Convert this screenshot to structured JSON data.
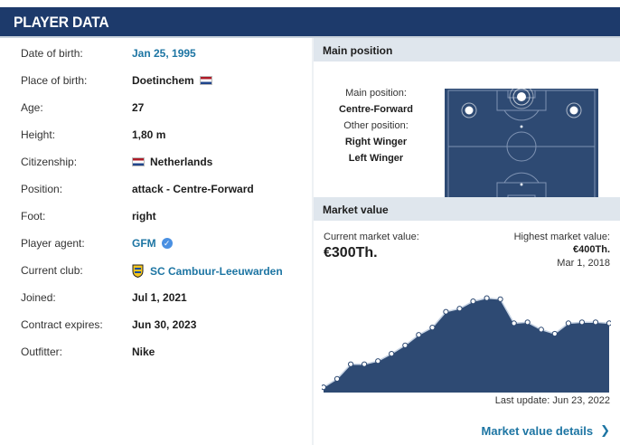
{
  "header": {
    "title": "PLAYER DATA"
  },
  "profile": {
    "rows": [
      {
        "label": "Date of birth:",
        "value": "Jan 25, 1995"
      },
      {
        "label": "Place of birth:",
        "value": "Doetinchem"
      },
      {
        "label": "Age:",
        "value": "27"
      },
      {
        "label": "Height:",
        "value": "1,80 m"
      },
      {
        "label": "Citizenship:",
        "value": "Netherlands"
      },
      {
        "label": "Position:",
        "value": "attack - Centre-Forward"
      },
      {
        "label": "Foot:",
        "value": "right"
      },
      {
        "label": "Player agent:",
        "value": "GFM"
      },
      {
        "label": "Current club:",
        "value": "SC Cambuur-Leeuwarden"
      },
      {
        "label": "Joined:",
        "value": "Jul 1, 2021"
      },
      {
        "label": "Contract expires:",
        "value": "Jun 30, 2023"
      },
      {
        "label": "Outfitter:",
        "value": "Nike"
      }
    ]
  },
  "main_position": {
    "section_title": "Main position",
    "main_label": "Main position:",
    "main_value": "Centre-Forward",
    "other_label": "Other position:",
    "other_values": [
      "Right Winger",
      "Left Winger"
    ]
  },
  "market_value": {
    "section_title": "Market value",
    "current_label": "Current market value:",
    "current_value": "€300Th.",
    "highest_label": "Highest market value:",
    "highest_value": "€400Th.",
    "highest_date": "Mar 1, 2018",
    "last_update": "Last update: Jun 23, 2022",
    "details_link": "Market value details"
  },
  "colors": {
    "header_bg": "#1d3a6b",
    "link": "#1d75a3",
    "chart_fill": "#2e4a73",
    "section_head_bg": "#dfe6ed",
    "panel_bg": "#f2f5f8"
  },
  "icons": {
    "flag": "netherlands-flag-icon",
    "verified": "verified-check-icon",
    "club": "cambuur-crest-icon",
    "chevron": "chevron-right-icon"
  },
  "chart_data": {
    "type": "area",
    "title": "",
    "xlabel": "",
    "ylabel": "",
    "points": [
      0.05,
      0.13,
      0.27,
      0.27,
      0.3,
      0.37,
      0.45,
      0.55,
      0.62,
      0.77,
      0.8,
      0.87,
      0.9,
      0.89,
      0.66,
      0.67,
      0.6,
      0.56,
      0.66,
      0.67,
      0.67,
      0.66
    ],
    "ylim": [
      0,
      1
    ]
  }
}
